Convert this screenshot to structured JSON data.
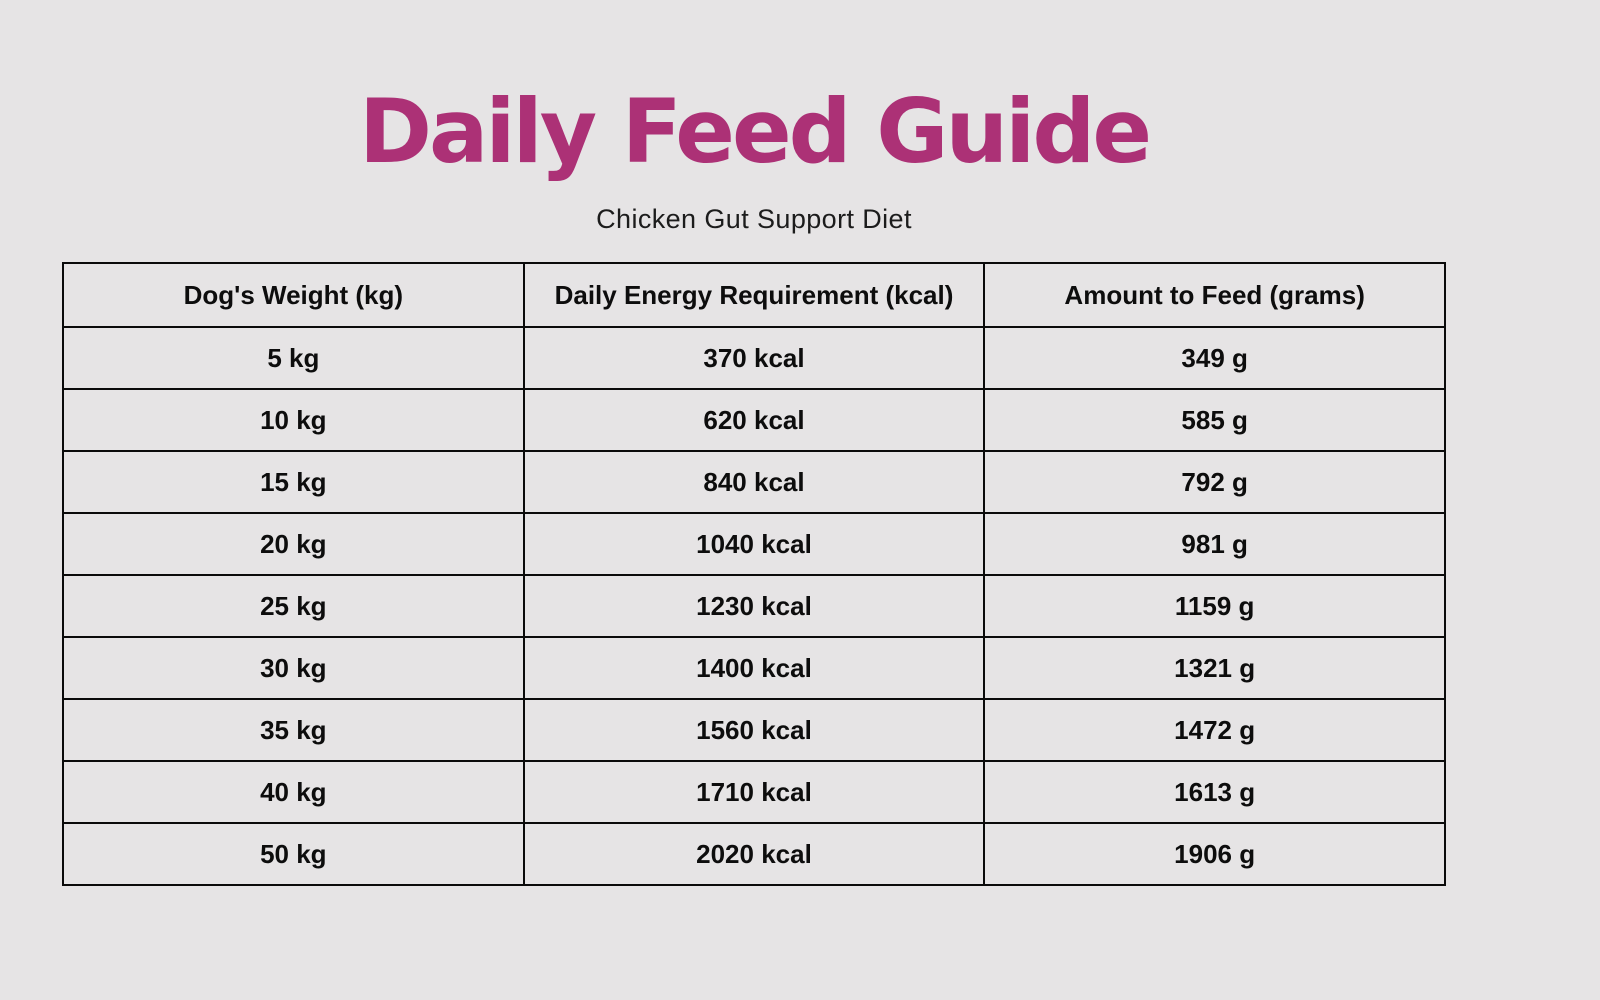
{
  "page": {
    "title": "Daily Feed Guide",
    "subtitle": "Chicken Gut Support Diet"
  },
  "colors": {
    "title_accent": "#ac3176",
    "background": "#e6e4e5",
    "table_border": "#0a0a0a",
    "table_text": "#0d0d0d"
  },
  "table": {
    "columns": [
      "Dog's Weight (kg)",
      "Daily Energy Requirement (kcal)",
      "Amount to Feed (grams)"
    ],
    "rows": [
      [
        "5 kg",
        "370 kcal",
        "349 g"
      ],
      [
        "10 kg",
        "620 kcal",
        "585 g"
      ],
      [
        "15 kg",
        "840 kcal",
        "792 g"
      ],
      [
        "20 kg",
        "1040 kcal",
        "981 g"
      ],
      [
        "25 kg",
        "1230 kcal",
        "1159 g"
      ],
      [
        "30 kg",
        "1400 kcal",
        "1321 g"
      ],
      [
        "35 kg",
        "1560 kcal",
        "1472 g"
      ],
      [
        "40 kg",
        "1710 kcal",
        "1613 g"
      ],
      [
        "50 kg",
        "2020 kcal",
        "1906 g"
      ]
    ]
  }
}
